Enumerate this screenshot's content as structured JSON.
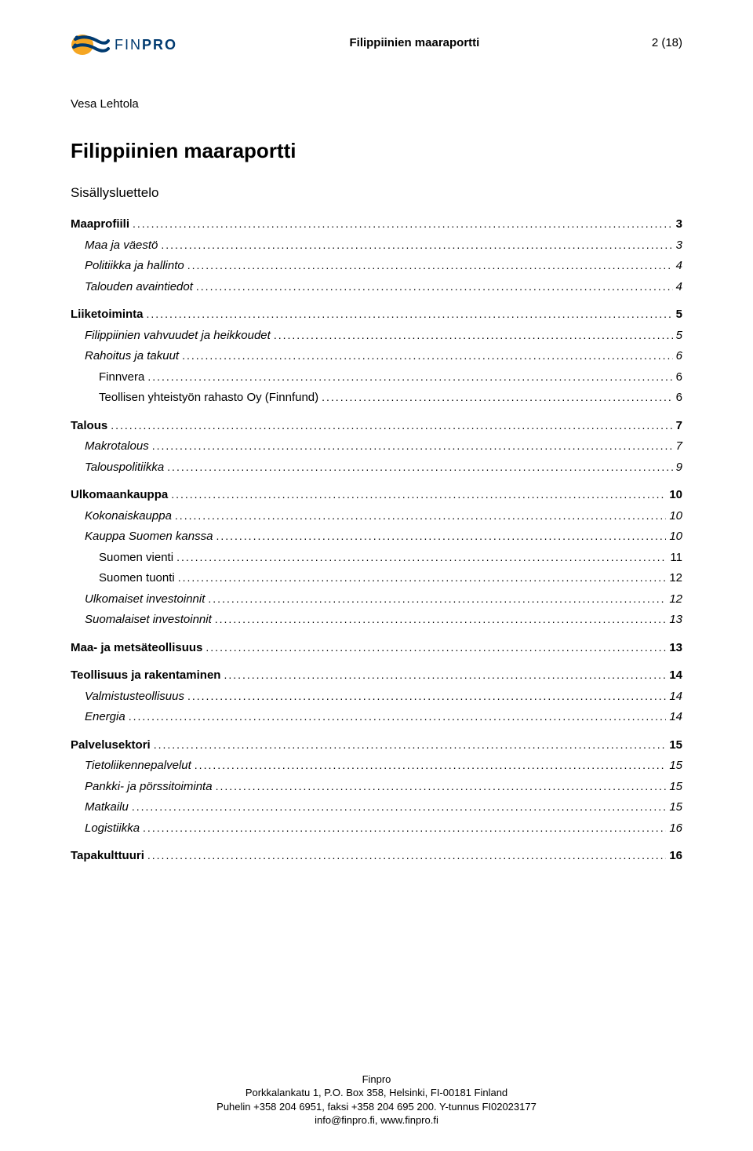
{
  "header": {
    "logo_text_light": "FIN",
    "logo_text_bold": "PRO",
    "title": "Filippiinien maaraportti",
    "page_num": "2 (18)"
  },
  "author": "Vesa Lehtola",
  "doc_title": "Filippiinien maaraportti",
  "subtitle": "Sisällysluettelo",
  "toc": [
    {
      "label": "Maaprofiili",
      "page": "3",
      "level": 0,
      "bold": true,
      "italic": false,
      "section": true
    },
    {
      "label": "Maa ja väestö",
      "page": "3",
      "level": 1,
      "bold": false,
      "italic": true,
      "section": false
    },
    {
      "label": "Politiikka ja hallinto",
      "page": "4",
      "level": 1,
      "bold": false,
      "italic": true,
      "section": false
    },
    {
      "label": "Talouden avaintiedot",
      "page": "4",
      "level": 1,
      "bold": false,
      "italic": true,
      "section": false
    },
    {
      "label": "Liiketoiminta",
      "page": "5",
      "level": 0,
      "bold": true,
      "italic": false,
      "section": true
    },
    {
      "label": "Filippiinien vahvuudet ja heikkoudet",
      "page": "5",
      "level": 1,
      "bold": false,
      "italic": true,
      "section": false
    },
    {
      "label": "Rahoitus ja takuut",
      "page": "6",
      "level": 1,
      "bold": false,
      "italic": true,
      "section": false
    },
    {
      "label": "Finnvera",
      "page": "6",
      "level": 2,
      "bold": false,
      "italic": false,
      "section": false
    },
    {
      "label": "Teollisen yhteistyön rahasto Oy (Finnfund)",
      "page": "6",
      "level": 2,
      "bold": false,
      "italic": false,
      "section": false
    },
    {
      "label": "Talous",
      "page": "7",
      "level": 0,
      "bold": true,
      "italic": false,
      "section": true
    },
    {
      "label": "Makrotalous",
      "page": "7",
      "level": 1,
      "bold": false,
      "italic": true,
      "section": false
    },
    {
      "label": "Talouspolitiikka",
      "page": "9",
      "level": 1,
      "bold": false,
      "italic": true,
      "section": false
    },
    {
      "label": "Ulkomaankauppa",
      "page": "10",
      "level": 0,
      "bold": true,
      "italic": false,
      "section": true
    },
    {
      "label": "Kokonaiskauppa",
      "page": "10",
      "level": 1,
      "bold": false,
      "italic": true,
      "section": false
    },
    {
      "label": "Kauppa Suomen kanssa",
      "page": "10",
      "level": 1,
      "bold": false,
      "italic": true,
      "section": false
    },
    {
      "label": "Suomen vienti",
      "page": "11",
      "level": 2,
      "bold": false,
      "italic": false,
      "section": false
    },
    {
      "label": "Suomen tuonti",
      "page": "12",
      "level": 2,
      "bold": false,
      "italic": false,
      "section": false
    },
    {
      "label": "Ulkomaiset investoinnit",
      "page": "12",
      "level": 1,
      "bold": false,
      "italic": true,
      "section": false
    },
    {
      "label": "Suomalaiset investoinnit",
      "page": "13",
      "level": 1,
      "bold": false,
      "italic": true,
      "section": false
    },
    {
      "label": "Maa- ja metsäteollisuus",
      "page": "13",
      "level": 0,
      "bold": true,
      "italic": false,
      "section": true
    },
    {
      "label": "Teollisuus ja rakentaminen",
      "page": "14",
      "level": 0,
      "bold": true,
      "italic": false,
      "section": true
    },
    {
      "label": "Valmistusteollisuus",
      "page": "14",
      "level": 1,
      "bold": false,
      "italic": true,
      "section": false
    },
    {
      "label": "Energia",
      "page": "14",
      "level": 1,
      "bold": false,
      "italic": true,
      "section": false
    },
    {
      "label": "Palvelusektori",
      "page": "15",
      "level": 0,
      "bold": true,
      "italic": false,
      "section": true
    },
    {
      "label": "Tietoliikennepalvelut",
      "page": "15",
      "level": 1,
      "bold": false,
      "italic": true,
      "section": false
    },
    {
      "label": "Pankki- ja pörssitoiminta",
      "page": "15",
      "level": 1,
      "bold": false,
      "italic": true,
      "section": false
    },
    {
      "label": "Matkailu",
      "page": "15",
      "level": 1,
      "bold": false,
      "italic": true,
      "section": false
    },
    {
      "label": "Logistiikka",
      "page": "16",
      "level": 1,
      "bold": false,
      "italic": true,
      "section": false
    },
    {
      "label": "Tapakulttuuri",
      "page": "16",
      "level": 0,
      "bold": true,
      "italic": false,
      "section": true
    }
  ],
  "footer": {
    "line1": "Finpro",
    "line2": "Porkkalankatu 1, P.O. Box 358, Helsinki, FI-00181 Finland",
    "line3": "Puhelin +358 204 6951, faksi +358 204 695 200. Y-tunnus FI02023177",
    "line4": "info@finpro.fi, www.finpro.fi"
  },
  "colors": {
    "logo_navy": "#003a70",
    "logo_orange": "#f5a623",
    "text": "#000000",
    "background": "#ffffff"
  }
}
